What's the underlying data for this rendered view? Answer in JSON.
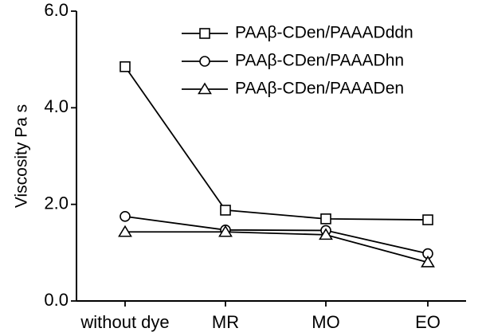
{
  "chart_data": {
    "type": "line",
    "categories": [
      "without dye",
      "MR",
      "MO",
      "EO"
    ],
    "ylabel": "Viscosity  Pa s",
    "ylim": [
      0,
      6
    ],
    "yticks": [
      "0.0",
      "2.0",
      "4.0",
      "6.0"
    ],
    "grid": false,
    "legend_position": "top-right",
    "series": [
      {
        "name": "PAAβ-CDen/PAAADddn",
        "marker": "square",
        "values": [
          4.85,
          1.88,
          1.7,
          1.68
        ]
      },
      {
        "name": "PAAβ-CDen/PAAADhn",
        "marker": "circle",
        "values": [
          1.75,
          1.47,
          1.46,
          0.98
        ]
      },
      {
        "name": "PAAβ-CDen/PAAADen",
        "marker": "triangle",
        "values": [
          1.43,
          1.43,
          1.37,
          0.8
        ]
      }
    ]
  }
}
